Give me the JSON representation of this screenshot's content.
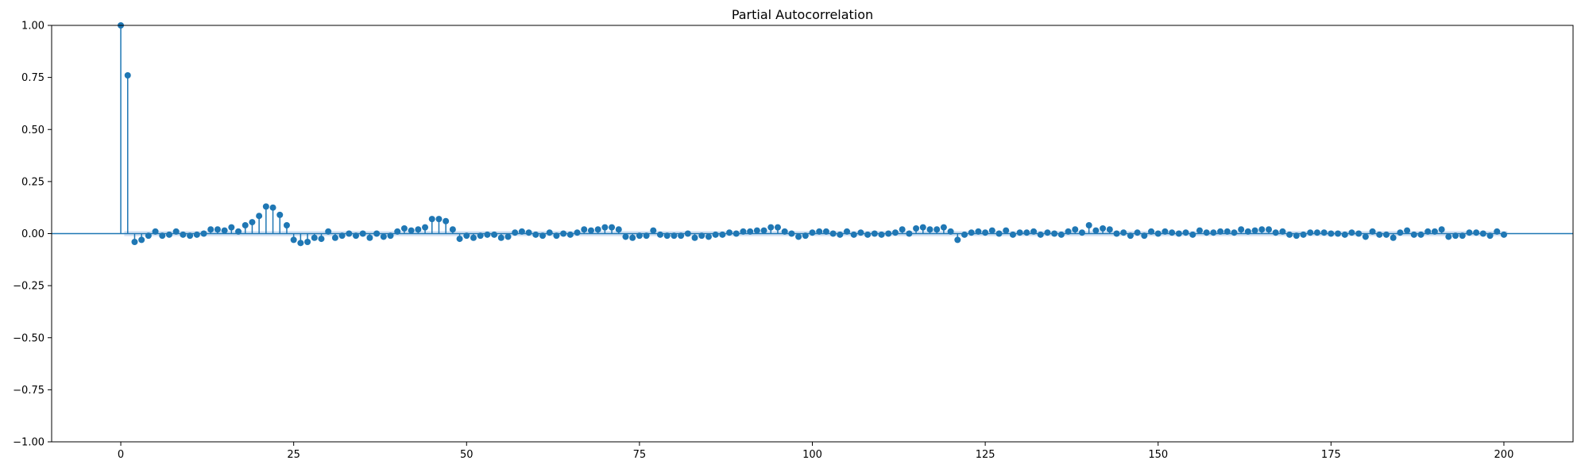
{
  "chart_data": {
    "type": "scatter",
    "title": "Partial Autocorrelation",
    "xlabel": "",
    "ylabel": "",
    "xlim": [
      -10,
      210
    ],
    "ylim": [
      -1.0,
      1.0
    ],
    "xticks": [
      0,
      25,
      50,
      75,
      100,
      125,
      150,
      175,
      200
    ],
    "xtick_labels": [
      "0",
      "25",
      "50",
      "75",
      "100",
      "125",
      "150",
      "175",
      "200"
    ],
    "yticks": [
      -1.0,
      -0.75,
      -0.5,
      -0.25,
      0.0,
      0.25,
      0.5,
      0.75,
      1.0
    ],
    "ytick_labels": [
      "−1.00",
      "−0.75",
      "−0.50",
      "−0.25",
      "0.00",
      "0.25",
      "0.50",
      "0.75",
      "1.00"
    ],
    "grid": false,
    "marker_color": "#1f77b4",
    "confint_color": "#aec7e8",
    "confint": 0.0125,
    "x": [
      0,
      1,
      2,
      3,
      4,
      5,
      6,
      7,
      8,
      9,
      10,
      11,
      12,
      13,
      14,
      15,
      16,
      17,
      18,
      19,
      20,
      21,
      22,
      23,
      24,
      25,
      26,
      27,
      28,
      29,
      30,
      31,
      32,
      33,
      34,
      35,
      36,
      37,
      38,
      39,
      40,
      41,
      42,
      43,
      44,
      45,
      46,
      47,
      48,
      49,
      50,
      51,
      52,
      53,
      54,
      55,
      56,
      57,
      58,
      59,
      60,
      61,
      62,
      63,
      64,
      65,
      66,
      67,
      68,
      69,
      70,
      71,
      72,
      73,
      74,
      75,
      76,
      77,
      78,
      79,
      80,
      81,
      82,
      83,
      84,
      85,
      86,
      87,
      88,
      89,
      90,
      91,
      92,
      93,
      94,
      95,
      96,
      97,
      98,
      99,
      100,
      101,
      102,
      103,
      104,
      105,
      106,
      107,
      108,
      109,
      110,
      111,
      112,
      113,
      114,
      115,
      116,
      117,
      118,
      119,
      120,
      121,
      122,
      123,
      124,
      125,
      126,
      127,
      128,
      129,
      130,
      131,
      132,
      133,
      134,
      135,
      136,
      137,
      138,
      139,
      140,
      141,
      142,
      143,
      144,
      145,
      146,
      147,
      148,
      149,
      150,
      151,
      152,
      153,
      154,
      155,
      156,
      157,
      158,
      159,
      160,
      161,
      162,
      163,
      164,
      165,
      166,
      167,
      168,
      169,
      170,
      171,
      172,
      173,
      174,
      175,
      176,
      177,
      178,
      179,
      180,
      181,
      182,
      183,
      184,
      185,
      186,
      187,
      188,
      189,
      190,
      191,
      192,
      193,
      194,
      195,
      196,
      197,
      198,
      199,
      200
    ],
    "values": [
      1.0,
      0.76,
      -0.04,
      -0.03,
      -0.01,
      0.01,
      -0.01,
      -0.005,
      0.01,
      -0.005,
      -0.01,
      -0.005,
      0.0,
      0.02,
      0.02,
      0.015,
      0.03,
      0.01,
      0.04,
      0.055,
      0.085,
      0.13,
      0.125,
      0.09,
      0.04,
      -0.03,
      -0.045,
      -0.04,
      -0.02,
      -0.025,
      0.01,
      -0.02,
      -0.01,
      0.0,
      -0.01,
      0.0,
      -0.02,
      0.0,
      -0.015,
      -0.01,
      0.01,
      0.025,
      0.015,
      0.02,
      0.03,
      0.07,
      0.07,
      0.06,
      0.02,
      -0.025,
      -0.01,
      -0.02,
      -0.01,
      -0.005,
      -0.005,
      -0.02,
      -0.015,
      0.005,
      0.01,
      0.005,
      -0.005,
      -0.01,
      0.005,
      -0.01,
      0.0,
      -0.005,
      0.005,
      0.02,
      0.015,
      0.02,
      0.03,
      0.03,
      0.02,
      -0.015,
      -0.02,
      -0.01,
      -0.01,
      0.015,
      -0.005,
      -0.01,
      -0.01,
      -0.01,
      0.0,
      -0.02,
      -0.01,
      -0.015,
      -0.005,
      -0.005,
      0.005,
      0.0,
      0.01,
      0.01,
      0.015,
      0.015,
      0.03,
      0.03,
      0.01,
      0.0,
      -0.015,
      -0.01,
      0.005,
      0.01,
      0.01,
      0.0,
      -0.005,
      0.01,
      -0.005,
      0.005,
      -0.005,
      0.0,
      -0.005,
      0.0,
      0.005,
      0.02,
      0.0,
      0.025,
      0.03,
      0.02,
      0.02,
      0.03,
      0.01,
      -0.03,
      -0.005,
      0.005,
      0.01,
      0.005,
      0.015,
      0.0,
      0.015,
      -0.005,
      0.005,
      0.005,
      0.01,
      -0.005,
      0.005,
      0.0,
      -0.005,
      0.01,
      0.02,
      0.005,
      0.04,
      0.015,
      0.025,
      0.02,
      0.0,
      0.005,
      -0.01,
      0.005,
      -0.01,
      0.01,
      0.0,
      0.01,
      0.005,
      0.0,
      0.005,
      -0.005,
      0.015,
      0.005,
      0.005,
      0.01,
      0.01,
      0.005,
      0.02,
      0.01,
      0.015,
      0.02,
      0.02,
      0.005,
      0.01,
      -0.005,
      -0.01,
      -0.005,
      0.005,
      0.005,
      0.005,
      0.0,
      0.0,
      -0.005,
      0.005,
      0.0,
      -0.015,
      0.01,
      -0.005,
      -0.005,
      -0.02,
      0.005,
      0.015,
      -0.005,
      -0.005,
      0.01,
      0.01,
      0.02,
      -0.015,
      -0.01,
      -0.01,
      0.005,
      0.005,
      0.0,
      -0.01,
      0.01,
      -0.005
    ]
  }
}
